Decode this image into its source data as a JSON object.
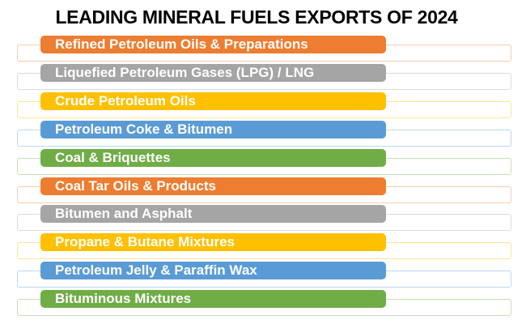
{
  "title": "LEADING MINERAL FUELS EXPORTS OF 2024",
  "chart": {
    "type": "ranked-bar-list",
    "items": [
      {
        "label": "Refined Petroleum Oils & Preparations",
        "fill": "#ED7D31",
        "outline": "#F8CBAD"
      },
      {
        "label": "Liquefied Petroleum Gases (LPG) / LNG",
        "fill": "#A5A5A5",
        "outline": "#DBDBDB"
      },
      {
        "label": "Crude Petroleum Oils",
        "fill": "#FFC000",
        "outline": "#FFE699"
      },
      {
        "label": "Petroleum Coke & Bitumen",
        "fill": "#5B9BD5",
        "outline": "#BDD7EE"
      },
      {
        "label": "Coal & Briquettes",
        "fill": "#70AD47",
        "outline": "#C6E0B4"
      },
      {
        "label": "Coal Tar Oils & Products",
        "fill": "#ED7D31",
        "outline": "#F8CBAD"
      },
      {
        "label": "Bitumen and Asphalt",
        "fill": "#A5A5A5",
        "outline": "#DBDBDB"
      },
      {
        "label": "Propane & Butane Mixtures",
        "fill": "#FFC000",
        "outline": "#FFE699"
      },
      {
        "label": "Petroleum Jelly & Paraffin Wax",
        "fill": "#5B9BD5",
        "outline": "#BDD7EE"
      },
      {
        "label": "Bituminous Mixtures",
        "fill": "#70AD47",
        "outline": "#C6E0B4"
      }
    ],
    "text_color": "#FFFFFF",
    "title_color": "#000000"
  }
}
